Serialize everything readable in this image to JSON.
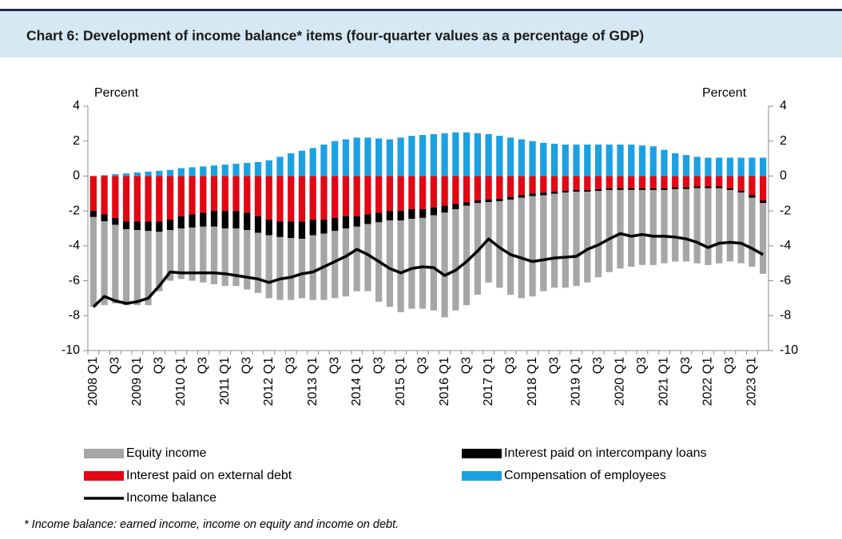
{
  "chart_data": {
    "type": "bar",
    "title": "Chart 6: Development of income balance* items (four-quarter values as a percentage of GDP)",
    "ylabel": "Percent",
    "y2label": "Percent",
    "footnote": "* Income balance: earned income, income on equity and income on debt.",
    "categories": [
      "2008 Q1",
      null,
      "Q3",
      null,
      "2009 Q1",
      null,
      "Q3",
      null,
      "2010 Q1",
      null,
      "Q3",
      null,
      "2011 Q1",
      null,
      "Q3",
      null,
      "2012 Q1",
      null,
      "Q3",
      null,
      "2013 Q1",
      null,
      "Q3",
      null,
      "2014 Q1",
      null,
      "Q3",
      null,
      "2015 Q1",
      null,
      "Q3",
      null,
      "2016 Q1",
      null,
      "Q3",
      null,
      "2017 Q1",
      null,
      "Q3",
      null,
      "2018 Q1",
      null,
      "Q3",
      null,
      "2019 Q1",
      null,
      "Q3",
      null,
      "2020 Q1",
      null,
      "Q3",
      null,
      "2021 Q1",
      null,
      "Q3",
      null,
      "2022 Q1",
      null,
      "Q3",
      null,
      "2023 Q1",
      null
    ],
    "series": [
      {
        "name": "Interest paid on external debt",
        "color": "#e30613",
        "values": [
          -2.0,
          -2.2,
          -2.4,
          -2.6,
          -2.6,
          -2.6,
          -2.6,
          -2.5,
          -2.3,
          -2.2,
          -2.1,
          -2.0,
          -2.0,
          -2.0,
          -2.1,
          -2.3,
          -2.5,
          -2.6,
          -2.6,
          -2.6,
          -2.5,
          -2.5,
          -2.4,
          -2.3,
          -2.3,
          -2.2,
          -2.1,
          -2.0,
          -2.0,
          -1.9,
          -1.9,
          -1.8,
          -1.7,
          -1.6,
          -1.5,
          -1.4,
          -1.35,
          -1.3,
          -1.2,
          -1.1,
          -1.0,
          -0.95,
          -0.9,
          -0.85,
          -0.8,
          -0.8,
          -0.75,
          -0.7,
          -0.7,
          -0.7,
          -0.7,
          -0.7,
          -0.7,
          -0.65,
          -0.65,
          -0.6,
          -0.6,
          -0.6,
          -0.7,
          -0.85,
          -1.1,
          -1.4
        ]
      },
      {
        "name": "Interest paid on intercompany loans",
        "color": "#000000",
        "values": [
          -0.35,
          -0.4,
          -0.4,
          -0.45,
          -0.5,
          -0.55,
          -0.6,
          -0.6,
          -0.7,
          -0.75,
          -0.8,
          -0.9,
          -1.0,
          -1.0,
          -1.0,
          -0.95,
          -0.9,
          -0.9,
          -0.95,
          -1.0,
          -0.9,
          -0.8,
          -0.75,
          -0.7,
          -0.6,
          -0.55,
          -0.55,
          -0.55,
          -0.55,
          -0.55,
          -0.5,
          -0.45,
          -0.4,
          -0.3,
          -0.2,
          -0.15,
          -0.15,
          -0.15,
          -0.15,
          -0.15,
          -0.15,
          -0.15,
          -0.12,
          -0.1,
          -0.1,
          -0.1,
          -0.1,
          -0.1,
          -0.1,
          -0.1,
          -0.1,
          -0.1,
          -0.1,
          -0.1,
          -0.1,
          -0.1,
          -0.1,
          -0.1,
          -0.1,
          -0.1,
          -0.15,
          -0.15
        ]
      },
      {
        "name": "Equity income",
        "color": "#a6a6a6",
        "values": [
          -5.15,
          -4.8,
          -4.5,
          -4.35,
          -4.3,
          -4.25,
          -3.4,
          -2.9,
          -2.9,
          -3.05,
          -3.2,
          -3.3,
          -3.3,
          -3.3,
          -3.4,
          -3.45,
          -3.6,
          -3.6,
          -3.55,
          -3.4,
          -3.7,
          -3.8,
          -3.85,
          -3.9,
          -3.7,
          -3.85,
          -4.55,
          -4.95,
          -5.25,
          -5.15,
          -5.2,
          -5.45,
          -6.0,
          -5.8,
          -5.7,
          -5.25,
          -4.6,
          -4.95,
          -5.45,
          -5.75,
          -5.75,
          -5.5,
          -5.38,
          -5.45,
          -5.4,
          -5.2,
          -4.95,
          -4.7,
          -4.5,
          -4.4,
          -4.3,
          -4.3,
          -4.2,
          -4.15,
          -4.15,
          -4.3,
          -4.4,
          -4.3,
          -4.1,
          -4.05,
          -3.95,
          -4.05
        ]
      },
      {
        "name": "Compensation of employees",
        "color": "#1ba1e2",
        "values": [
          0,
          0.05,
          0.1,
          0.15,
          0.2,
          0.25,
          0.3,
          0.35,
          0.45,
          0.5,
          0.55,
          0.6,
          0.65,
          0.7,
          0.75,
          0.8,
          0.9,
          1.1,
          1.3,
          1.45,
          1.6,
          1.8,
          2.0,
          2.1,
          2.2,
          2.2,
          2.15,
          2.1,
          2.2,
          2.3,
          2.35,
          2.4,
          2.45,
          2.5,
          2.5,
          2.45,
          2.4,
          2.3,
          2.2,
          2.1,
          2.0,
          1.9,
          1.85,
          1.8,
          1.8,
          1.8,
          1.8,
          1.8,
          1.8,
          1.8,
          1.75,
          1.7,
          1.5,
          1.3,
          1.2,
          1.1,
          1.05,
          1.05,
          1.05,
          1.05,
          1.05,
          1.05
        ]
      },
      {
        "name": "Income balance",
        "color": "#000000",
        "type": "line",
        "values": [
          -7.5,
          -6.9,
          -7.15,
          -7.3,
          -7.2,
          -7.0,
          -6.3,
          -5.5,
          -5.55,
          -5.55,
          -5.55,
          -5.55,
          -5.6,
          -5.7,
          -5.8,
          -5.9,
          -6.1,
          -5.9,
          -5.8,
          -5.6,
          -5.5,
          -5.2,
          -4.9,
          -4.6,
          -4.2,
          -4.5,
          -4.9,
          -5.3,
          -5.55,
          -5.3,
          -5.2,
          -5.25,
          -5.7,
          -5.4,
          -4.9,
          -4.3,
          -3.6,
          -4.1,
          -4.5,
          -4.7,
          -4.9,
          -4.8,
          -4.7,
          -4.65,
          -4.6,
          -4.2,
          -3.95,
          -3.6,
          -3.3,
          -3.45,
          -3.35,
          -3.45,
          -3.45,
          -3.5,
          -3.6,
          -3.8,
          -4.1,
          -3.85,
          -3.8,
          -3.85,
          -4.15,
          -4.5
        ]
      }
    ],
    "ylim": [
      -10,
      4
    ],
    "yticks": [
      -10,
      -8,
      -6,
      -4,
      -2,
      0,
      2,
      4
    ],
    "y2lim": [
      -10,
      4
    ],
    "y2ticks": [
      -10,
      -8,
      -6,
      -4,
      -2,
      0,
      2,
      4
    ]
  }
}
